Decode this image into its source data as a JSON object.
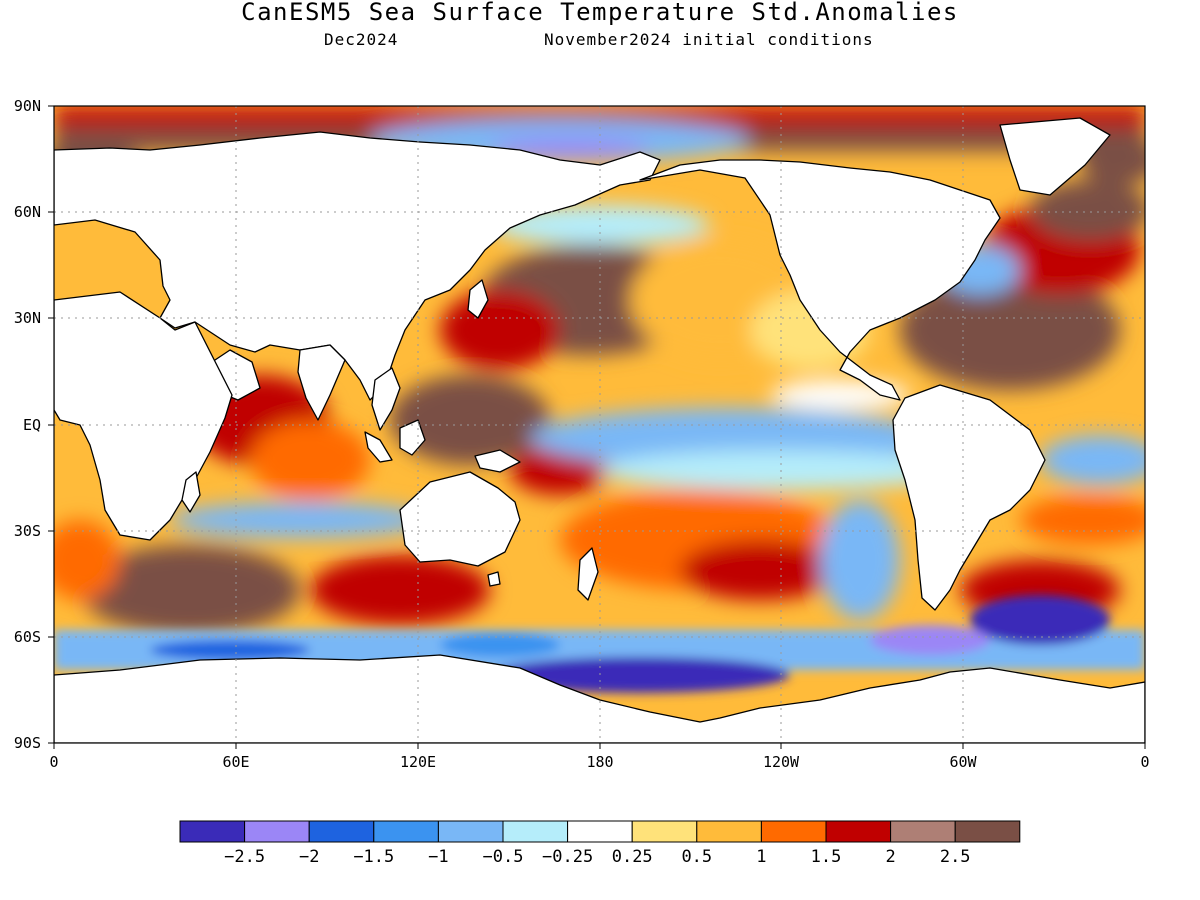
{
  "title": "CanESM5 Sea Surface Temperature Std.Anomalies",
  "subtitle_left": "Dec2024",
  "subtitle_right": "November2024 initial conditions",
  "lat_ticks": [
    "90N",
    "60N",
    "30N",
    "EQ",
    "30S",
    "60S",
    "90S"
  ],
  "lon_ticks": [
    "0",
    "60E",
    "120E",
    "180",
    "120W",
    "60W",
    "0"
  ],
  "colorbar": {
    "colors": [
      "#3a2bb8",
      "#9b86f6",
      "#1e63e0",
      "#3b93f0",
      "#79b7f6",
      "#b5edfa",
      "#ffffff",
      "#ffe27a",
      "#ffbb3a",
      "#ff6a00",
      "#c00000",
      "#ae7f75",
      "#7a4f45"
    ],
    "labels": [
      "−2.5",
      "−2",
      "−1.5",
      "−1",
      "−0.5",
      "−0.25",
      "0.25",
      "0.5",
      "1",
      "1.5",
      "2",
      "2.5"
    ]
  },
  "chart_data": {
    "type": "heatmap",
    "title": "CanESM5 Sea Surface Temperature Std.Anomalies",
    "valid_month": "Dec2024",
    "initial_conditions": "November2024 initial conditions",
    "variable": "Sea Surface Temperature standardized anomaly",
    "x_axis": {
      "ticks": [
        "0",
        "60E",
        "120E",
        "180",
        "120W",
        "60W",
        "0"
      ],
      "range_deg_east": [
        0,
        360
      ]
    },
    "y_axis": {
      "ticks": [
        "90N",
        "60N",
        "30N",
        "EQ",
        "30S",
        "60S",
        "90S"
      ],
      "range_deg_north": [
        -90,
        90
      ]
    },
    "grid": true,
    "color_levels": [
      -2.5,
      -2,
      -1.5,
      -1,
      -0.5,
      -0.25,
      0.25,
      0.5,
      1,
      1.5,
      2,
      2.5
    ],
    "features": [
      {
        "region": "Equatorial central-eastern Pacific",
        "anomaly": "negative (about -0.5 to -1)"
      },
      {
        "region": "North Pacific mid-latitudes",
        "anomaly": "strongly positive (above 2.5)"
      },
      {
        "region": "Western Pacific warm pool / Maritime Continent",
        "anomaly": "strongly positive (2 to above 2.5)"
      },
      {
        "region": "North Atlantic",
        "anomaly": "strongly positive (2 to above 2.5)"
      },
      {
        "region": "South Indian Ocean subtropics",
        "anomaly": "positive, patches above 2.5"
      },
      {
        "region": "Southern Ocean near Antarctica",
        "anomaly": "negative (-1 to -2.5)"
      },
      {
        "region": "Arctic Ocean rim",
        "anomaly": "positive (above 2.5)"
      },
      {
        "region": "Central Arctic north of Siberia",
        "anomaly": "negative (-1 to -2)"
      }
    ]
  }
}
